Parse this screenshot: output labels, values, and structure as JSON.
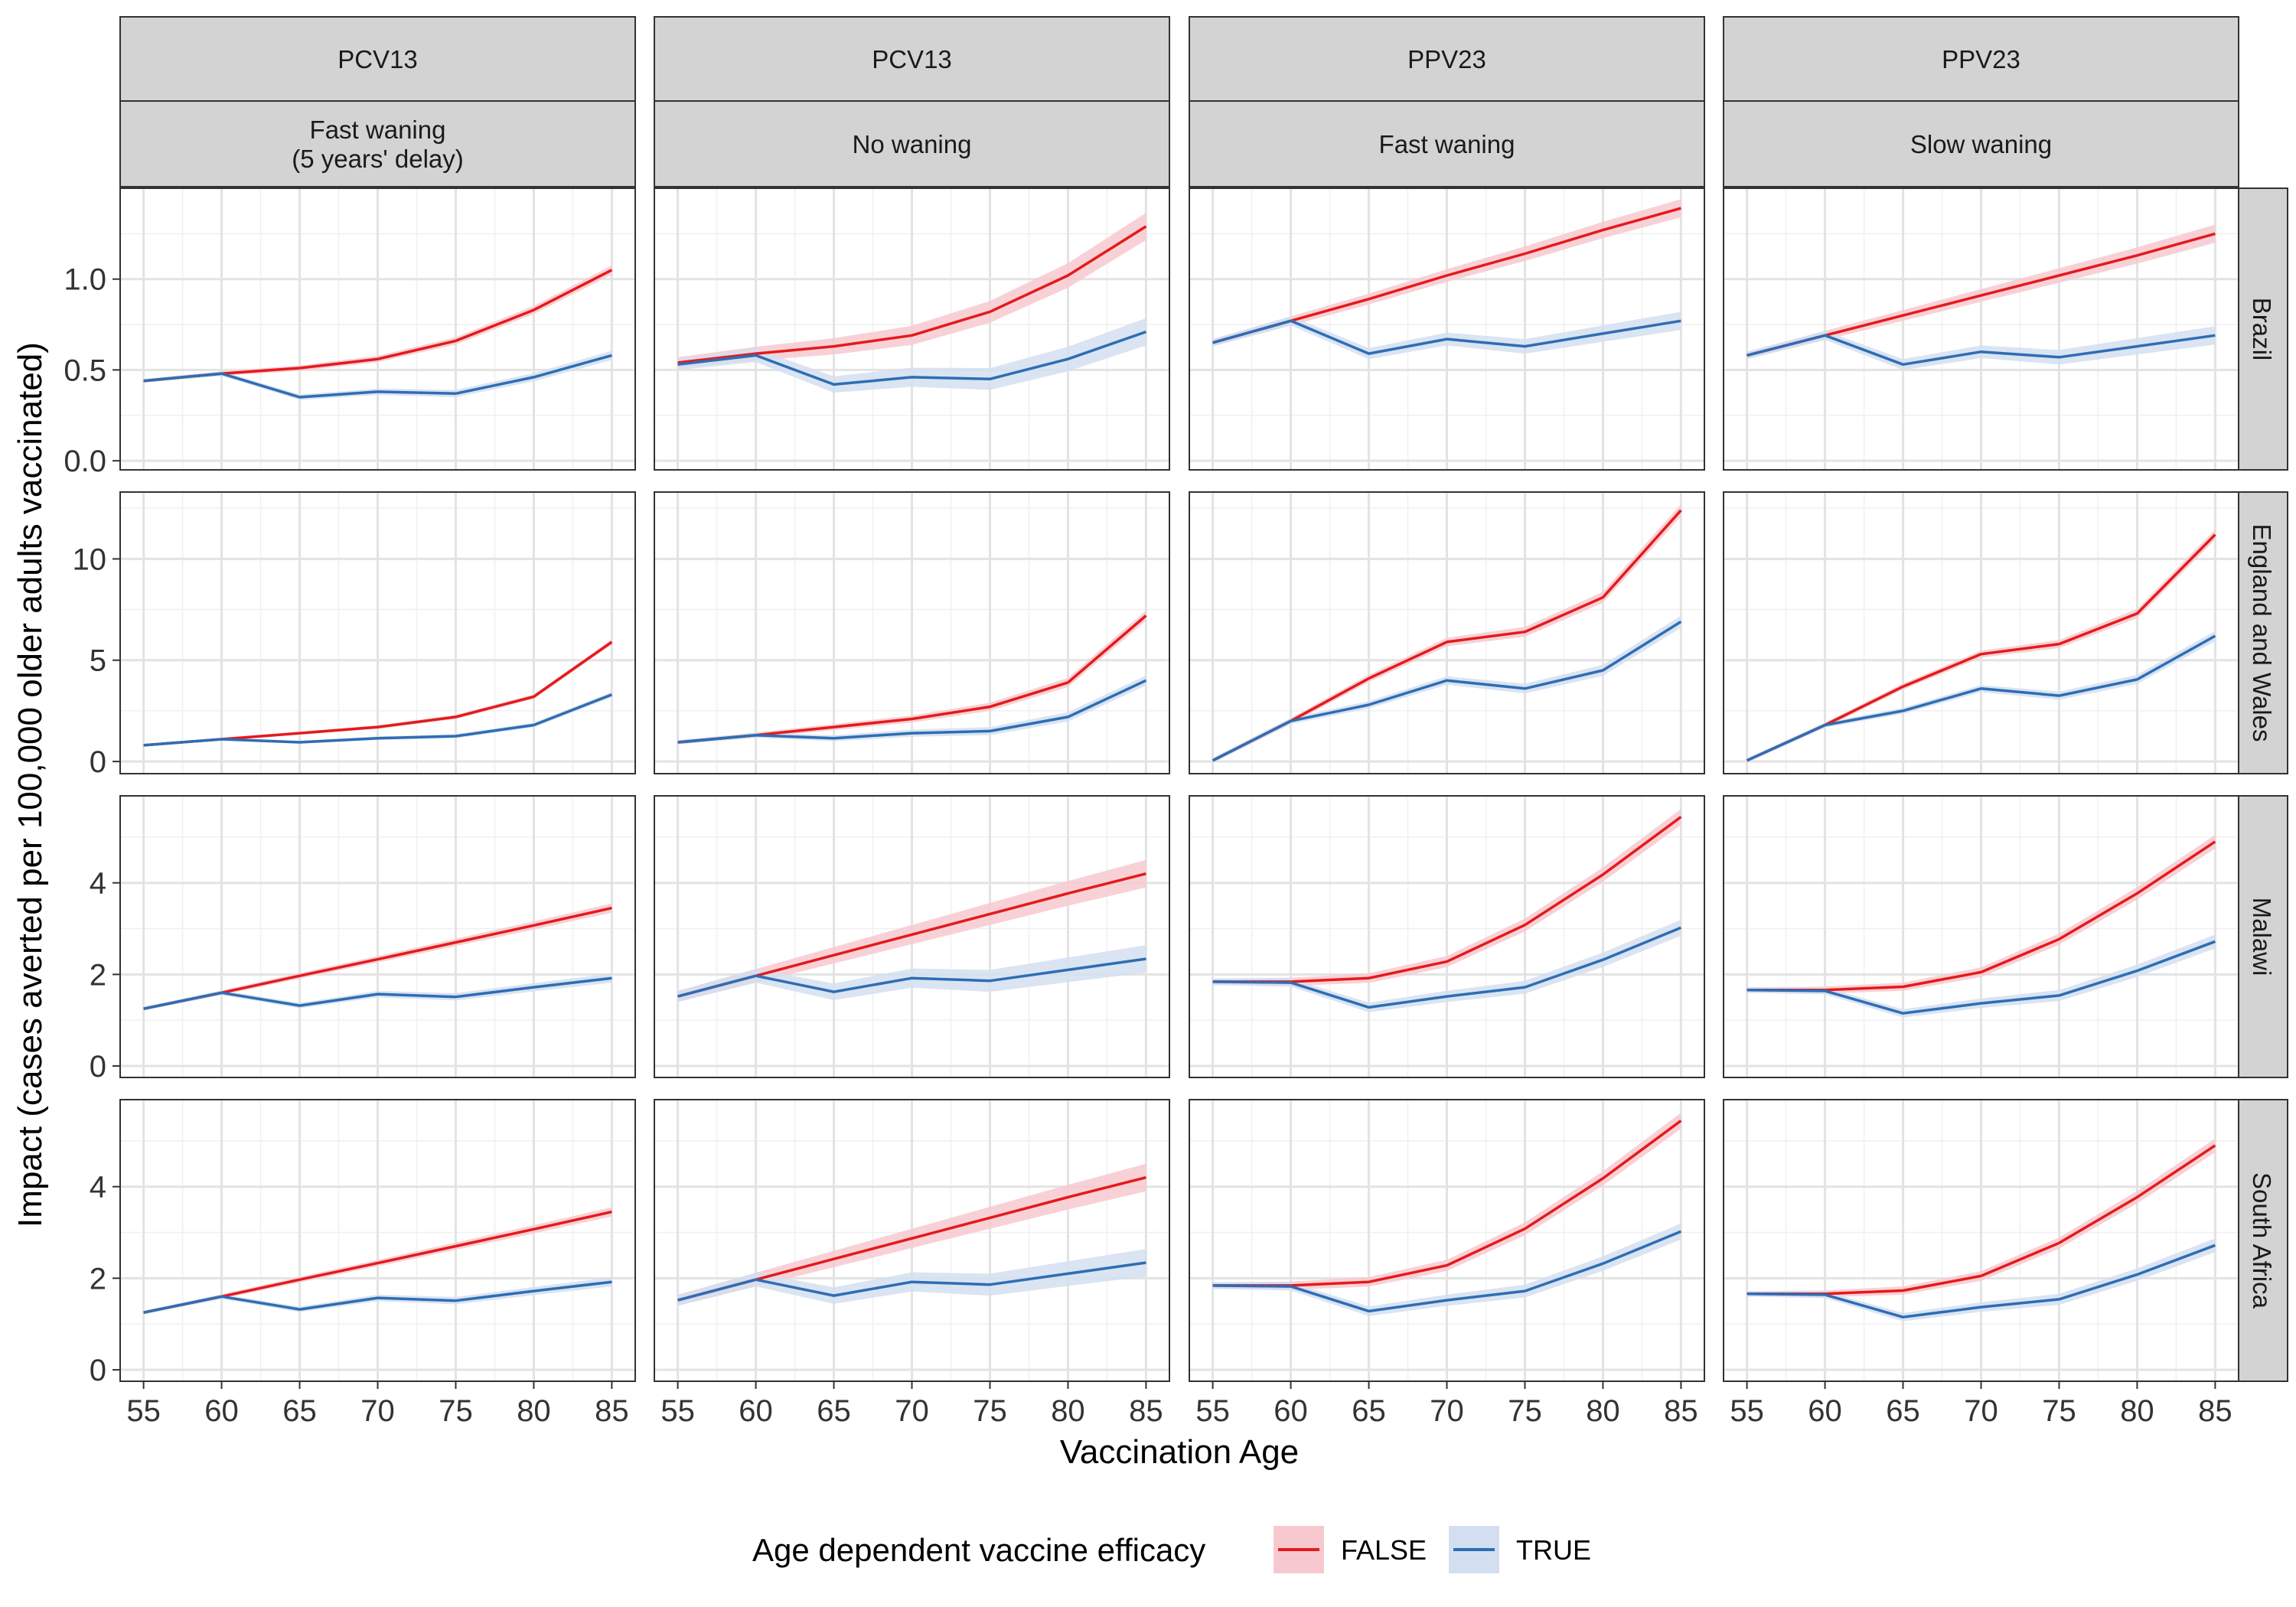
{
  "chart_data": {
    "type": "line",
    "xlabel": "Vaccination Age",
    "ylabel": "Impact (cases averted per 100,000 older adults vaccinated)",
    "x": [
      55,
      60,
      65,
      70,
      75,
      80,
      85
    ],
    "x_ticks": [
      "55",
      "60",
      "65",
      "70",
      "75",
      "80",
      "85"
    ],
    "xlim": [
      53.5,
      86.5
    ],
    "grid": true,
    "legend": {
      "title": "Age dependent vaccine efficacy",
      "position": "bottom",
      "entries": [
        {
          "label": "FALSE",
          "color": "#e41a1c",
          "fill": "#f7c9cf"
        },
        {
          "label": "TRUE",
          "color": "#2e6db4",
          "fill": "#d3dff0"
        }
      ]
    },
    "columns": [
      {
        "vaccine": "PCV13",
        "waning": "Fast waning\n(5 years' delay)"
      },
      {
        "vaccine": "PCV13",
        "waning": "No waning"
      },
      {
        "vaccine": "PPV23",
        "waning": "Fast waning"
      },
      {
        "vaccine": "PPV23",
        "waning": "Slow waning"
      }
    ],
    "rows": [
      {
        "country": "Brazil",
        "ylim": [
          -0.05,
          1.5
        ],
        "y_ticks": [
          0.0,
          0.5,
          1.0
        ],
        "y_tick_labels": [
          "0.0",
          "0.5",
          "1.0"
        ]
      },
      {
        "country": "England and Wales",
        "ylim": [
          -0.6,
          13.3
        ],
        "y_ticks": [
          0,
          5,
          10
        ],
        "y_tick_labels": [
          "0",
          "5",
          "10"
        ]
      },
      {
        "country": "Malawi",
        "ylim": [
          -0.25,
          5.9
        ],
        "y_ticks": [
          0,
          2,
          4
        ],
        "y_tick_labels": [
          "0",
          "2",
          "4"
        ]
      },
      {
        "country": "South Africa",
        "ylim": [
          -0.25,
          5.9
        ],
        "y_ticks": [
          0,
          2,
          4
        ],
        "y_tick_labels": [
          "0",
          "2",
          "4"
        ]
      }
    ],
    "panels": [
      [
        {
          "FALSE": [
            0.44,
            0.48,
            0.51,
            0.56,
            0.66,
            0.83,
            1.05
          ],
          "TRUE": [
            0.44,
            0.48,
            0.35,
            0.38,
            0.37,
            0.46,
            0.58
          ],
          "band": 0.01
        },
        {
          "FALSE": [
            0.54,
            0.59,
            0.63,
            0.69,
            0.82,
            1.02,
            1.29
          ],
          "TRUE": [
            0.53,
            0.58,
            0.42,
            0.46,
            0.45,
            0.56,
            0.71
          ],
          "band": 0.03
        },
        {
          "FALSE": [
            0.65,
            0.77,
            0.89,
            1.02,
            1.14,
            1.27,
            1.39
          ],
          "TRUE": [
            0.65,
            0.77,
            0.59,
            0.67,
            0.63,
            0.7,
            0.77
          ],
          "band": 0.02
        },
        {
          "FALSE": [
            0.58,
            0.69,
            0.8,
            0.91,
            1.02,
            1.13,
            1.25
          ],
          "TRUE": [
            0.58,
            0.69,
            0.53,
            0.6,
            0.57,
            0.63,
            0.69
          ],
          "band": 0.02
        }
      ],
      [
        {
          "FALSE": [
            0.8,
            1.1,
            1.4,
            1.7,
            2.2,
            3.2,
            5.9
          ],
          "TRUE": [
            0.8,
            1.1,
            0.95,
            1.15,
            1.25,
            1.8,
            3.3
          ],
          "band": 0.05
        },
        {
          "FALSE": [
            0.95,
            1.3,
            1.7,
            2.1,
            2.7,
            3.9,
            7.2
          ],
          "TRUE": [
            0.95,
            1.3,
            1.15,
            1.4,
            1.5,
            2.2,
            4.0
          ],
          "band": 0.1
        },
        {
          "FALSE": [
            0.05,
            2.0,
            4.1,
            5.9,
            6.4,
            8.1,
            12.4
          ],
          "TRUE": [
            0.05,
            2.0,
            2.8,
            4.0,
            3.6,
            4.5,
            6.9
          ],
          "band": 0.12
        },
        {
          "FALSE": [
            0.05,
            1.8,
            3.7,
            5.3,
            5.8,
            7.3,
            11.2
          ],
          "TRUE": [
            0.05,
            1.8,
            2.5,
            3.6,
            3.25,
            4.05,
            6.2
          ],
          "band": 0.1
        }
      ],
      [
        {
          "FALSE": [
            1.25,
            1.6,
            1.97,
            2.33,
            2.7,
            3.07,
            3.45
          ],
          "TRUE": [
            1.25,
            1.6,
            1.32,
            1.57,
            1.51,
            1.72,
            1.92
          ],
          "band": 0.04
        },
        {
          "FALSE": [
            1.52,
            1.97,
            2.42,
            2.87,
            3.32,
            3.77,
            4.2
          ],
          "TRUE": [
            1.52,
            1.97,
            1.62,
            1.92,
            1.86,
            2.1,
            2.34
          ],
          "band": 0.12
        },
        {
          "FALSE": [
            1.84,
            1.84,
            1.92,
            2.28,
            3.08,
            4.18,
            5.44
          ],
          "TRUE": [
            1.84,
            1.82,
            1.28,
            1.52,
            1.72,
            2.32,
            3.02
          ],
          "band": 0.07
        },
        {
          "FALSE": [
            1.66,
            1.66,
            1.73,
            2.05,
            2.77,
            3.77,
            4.9
          ],
          "TRUE": [
            1.66,
            1.64,
            1.15,
            1.37,
            1.54,
            2.08,
            2.72
          ],
          "band": 0.06
        }
      ],
      [
        {
          "FALSE": [
            1.25,
            1.6,
            1.97,
            2.33,
            2.7,
            3.07,
            3.45
          ],
          "TRUE": [
            1.25,
            1.6,
            1.32,
            1.57,
            1.51,
            1.72,
            1.92
          ],
          "band": 0.04
        },
        {
          "FALSE": [
            1.52,
            1.97,
            2.42,
            2.87,
            3.32,
            3.77,
            4.2
          ],
          "TRUE": [
            1.52,
            1.97,
            1.62,
            1.92,
            1.86,
            2.1,
            2.34
          ],
          "band": 0.12
        },
        {
          "FALSE": [
            1.84,
            1.84,
            1.92,
            2.28,
            3.08,
            4.18,
            5.44
          ],
          "TRUE": [
            1.84,
            1.82,
            1.28,
            1.52,
            1.72,
            2.32,
            3.02
          ],
          "band": 0.07
        },
        {
          "FALSE": [
            1.66,
            1.66,
            1.73,
            2.05,
            2.77,
            3.77,
            4.9
          ],
          "TRUE": [
            1.66,
            1.64,
            1.15,
            1.37,
            1.54,
            2.08,
            2.72
          ],
          "band": 0.06
        }
      ]
    ]
  }
}
